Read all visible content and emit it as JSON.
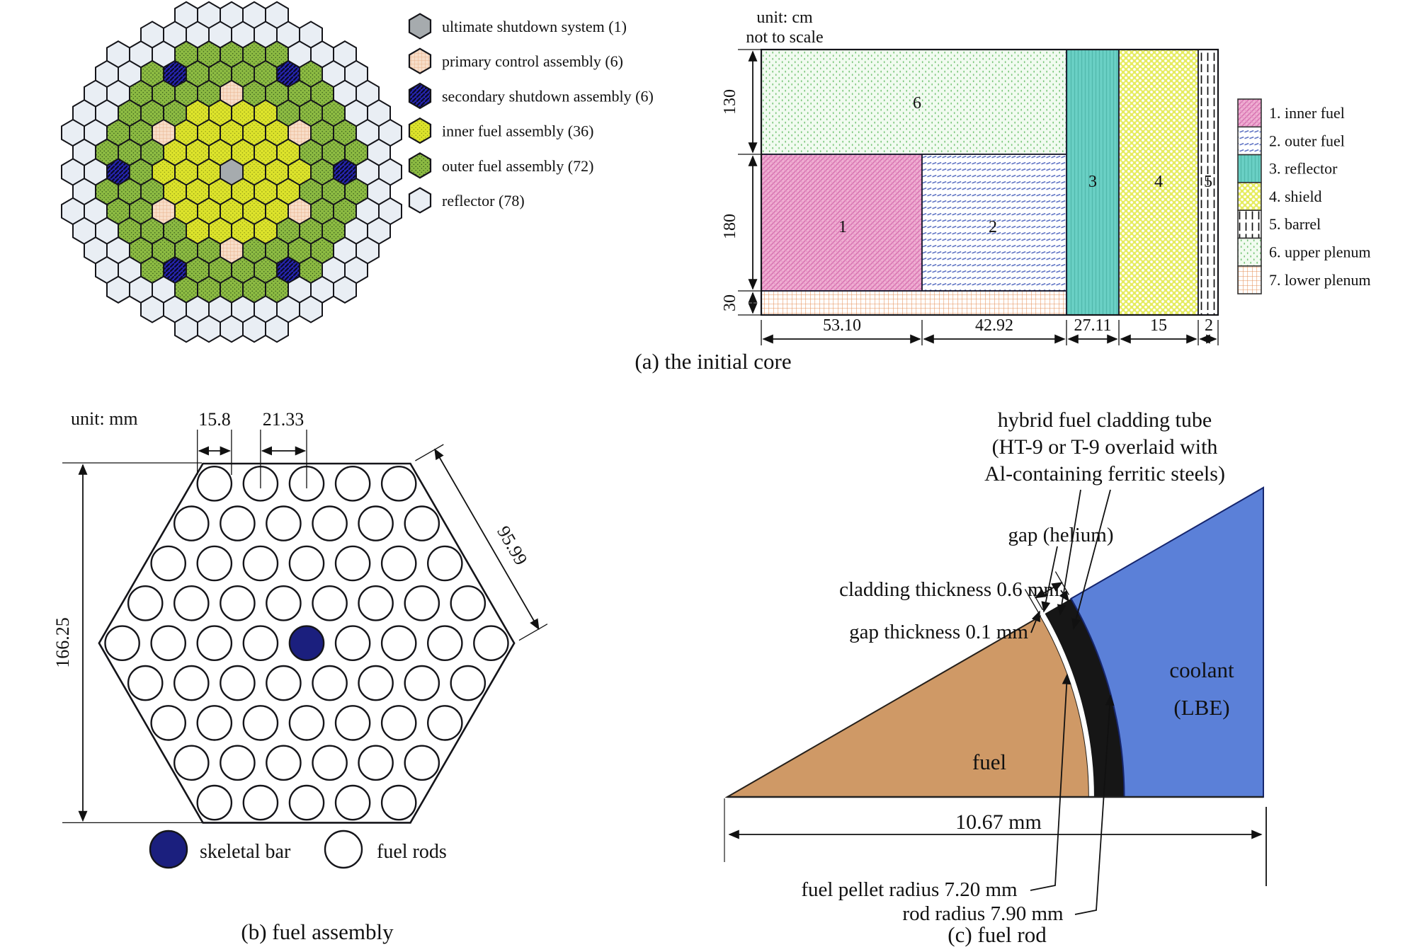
{
  "panel_a": {
    "caption": "(a) the initial core",
    "core_map": {
      "legend": [
        {
          "key": "U",
          "label": "ultimate shutdown system (1)"
        },
        {
          "key": "P",
          "label": "primary control assembly (6)"
        },
        {
          "key": "S",
          "label": "secondary shutdown assembly (6)"
        },
        {
          "key": "I",
          "label": "inner fuel assembly (36)"
        },
        {
          "key": "O",
          "label": "outer fuel assembly (72)"
        },
        {
          "key": "R",
          "label": "reflector (78)"
        }
      ],
      "rows": [
        {
          "off": -2,
          "cells": "RRRRR"
        },
        {
          "off": -3.5,
          "cells": "RRRRRRRR"
        },
        {
          "off": -5,
          "cells": "RRROOOOORRR"
        },
        {
          "off": -5.5,
          "cells": "RROSOOOOSORR"
        },
        {
          "off": -6,
          "cells": "RROOOOPOOOORR"
        },
        {
          "off": -6.5,
          "cells": "RROOOIIIIOOORR"
        },
        {
          "off": -7,
          "cells": "RROOPIIIIIPOORR"
        },
        {
          "off": -6.5,
          "cells": "ROOOIIIIIIOOOR"
        },
        {
          "off": -7,
          "cells": "RRSOIIIUIIIOSRR"
        },
        {
          "off": -6.5,
          "cells": "ROOOIIIIIIOOOR"
        },
        {
          "off": -7,
          "cells": "RROOPIIIIIPOORR"
        },
        {
          "off": -6.5,
          "cells": "RROOOIIIIOOORR"
        },
        {
          "off": -6,
          "cells": "RROOOOPOOOORR"
        },
        {
          "off": -5.5,
          "cells": "RROSOOOOSORR"
        },
        {
          "off": -5,
          "cells": "RRROOOOORRR"
        },
        {
          "off": -3.5,
          "cells": "RRRRRRRR"
        },
        {
          "off": -2,
          "cells": "RRRRR"
        }
      ]
    },
    "axial": {
      "note_line1": "unit: cm",
      "note_line2": "not to scale",
      "row_heights_cm": [
        "130",
        "180",
        "30"
      ],
      "col_widths_cm": [
        "53.10",
        "42.92",
        "27.11",
        "15",
        "2"
      ],
      "region_numbers": {
        "upper_plenum": "6",
        "inner": "1",
        "outer": "2",
        "reflector": "3",
        "shield": "4",
        "barrel": "5"
      },
      "legend": [
        "1. inner fuel",
        "2. outer fuel",
        "3. reflector",
        "4. shield",
        "5. barrel",
        "6. upper plenum",
        "7. lower plenum"
      ]
    }
  },
  "panel_b": {
    "caption": "(b) fuel assembly",
    "unit_note": "unit: mm",
    "dims": {
      "rod_diameter": "15.8",
      "pitch": "21.33",
      "side": "95.99",
      "across_flats": "166.25"
    },
    "rod_rows": [
      5,
      6,
      7,
      8,
      9,
      8,
      7,
      6,
      5
    ],
    "legend": {
      "skeletal": "skeletal bar",
      "rods": "fuel rods"
    }
  },
  "panel_c": {
    "caption": "(c) fuel rod",
    "cladding_note": [
      "hybrid fuel cladding tube",
      "(HT-9 or T-9 overlaid with",
      "Al-containing ferritic steels)"
    ],
    "labels": {
      "gap": "gap (helium)",
      "clad_t": "cladding thickness 0.6 mm",
      "gap_t": "gap thickness 0.1 mm",
      "fuel": "fuel",
      "coolant1": "coolant",
      "coolant2": "(LBE)",
      "width": "10.67 mm",
      "pellet": "fuel pellet radius 7.20 mm",
      "rod": "rod radius 7.90 mm"
    }
  },
  "colors": {
    "reflector": "#e9eef4",
    "outer_fuel": "#8cba42",
    "inner_fuel": "#dde32b",
    "secondary": "#2524ad",
    "primary": "#f8ddc8",
    "uss_gray": "#a6abae",
    "fuel_tan": "#cf9966",
    "coolant_blue": "#5b80d8",
    "clad_black": "#161616",
    "teal": "#6ad0c5",
    "shield_yellow": "#e6ec61",
    "pink": "#f0aed2"
  }
}
